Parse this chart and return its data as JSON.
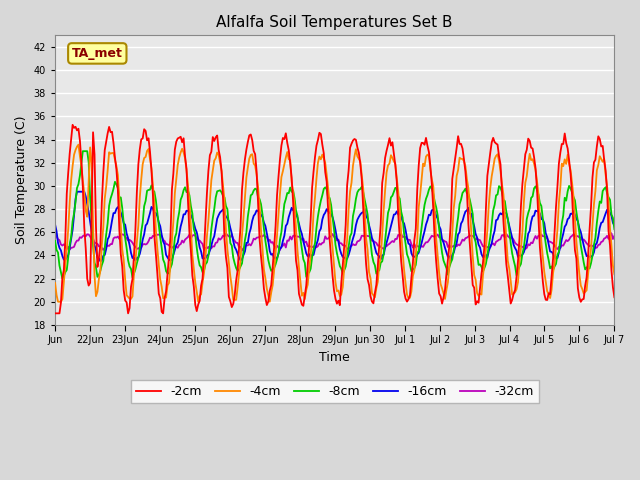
{
  "title": "Alfalfa Soil Temperatures Set B",
  "xlabel": "Time",
  "ylabel": "Soil Temperature (C)",
  "ylim": [
    18,
    43
  ],
  "yticks": [
    18,
    20,
    22,
    24,
    26,
    28,
    30,
    32,
    34,
    36,
    38,
    40,
    42
  ],
  "bg_color": "#d8d8d8",
  "plot_bg_color": "#e8e8e8",
  "grid_color": "white",
  "annotation_text": "TA_met",
  "annotation_bg": "#ffffa0",
  "annotation_border": "#aa8800",
  "series_colors": {
    "-2cm": "#ff0000",
    "-4cm": "#ff8800",
    "-8cm": "#00cc00",
    "-16cm": "#0000ee",
    "-32cm": "#bb00bb"
  },
  "series_linewidth": 1.3,
  "tick_labels": [
    "Jun",
    "22Jun",
    "23Jun",
    "24Jun",
    "25Jun",
    "26Jun",
    "27Jun",
    "28Jun",
    "29Jun",
    "Jun 30",
    "Jul 1",
    "Jul 2",
    "Jul 3",
    "Jul 4",
    "Jul 5",
    "Jul 6",
    "Jul 7"
  ]
}
